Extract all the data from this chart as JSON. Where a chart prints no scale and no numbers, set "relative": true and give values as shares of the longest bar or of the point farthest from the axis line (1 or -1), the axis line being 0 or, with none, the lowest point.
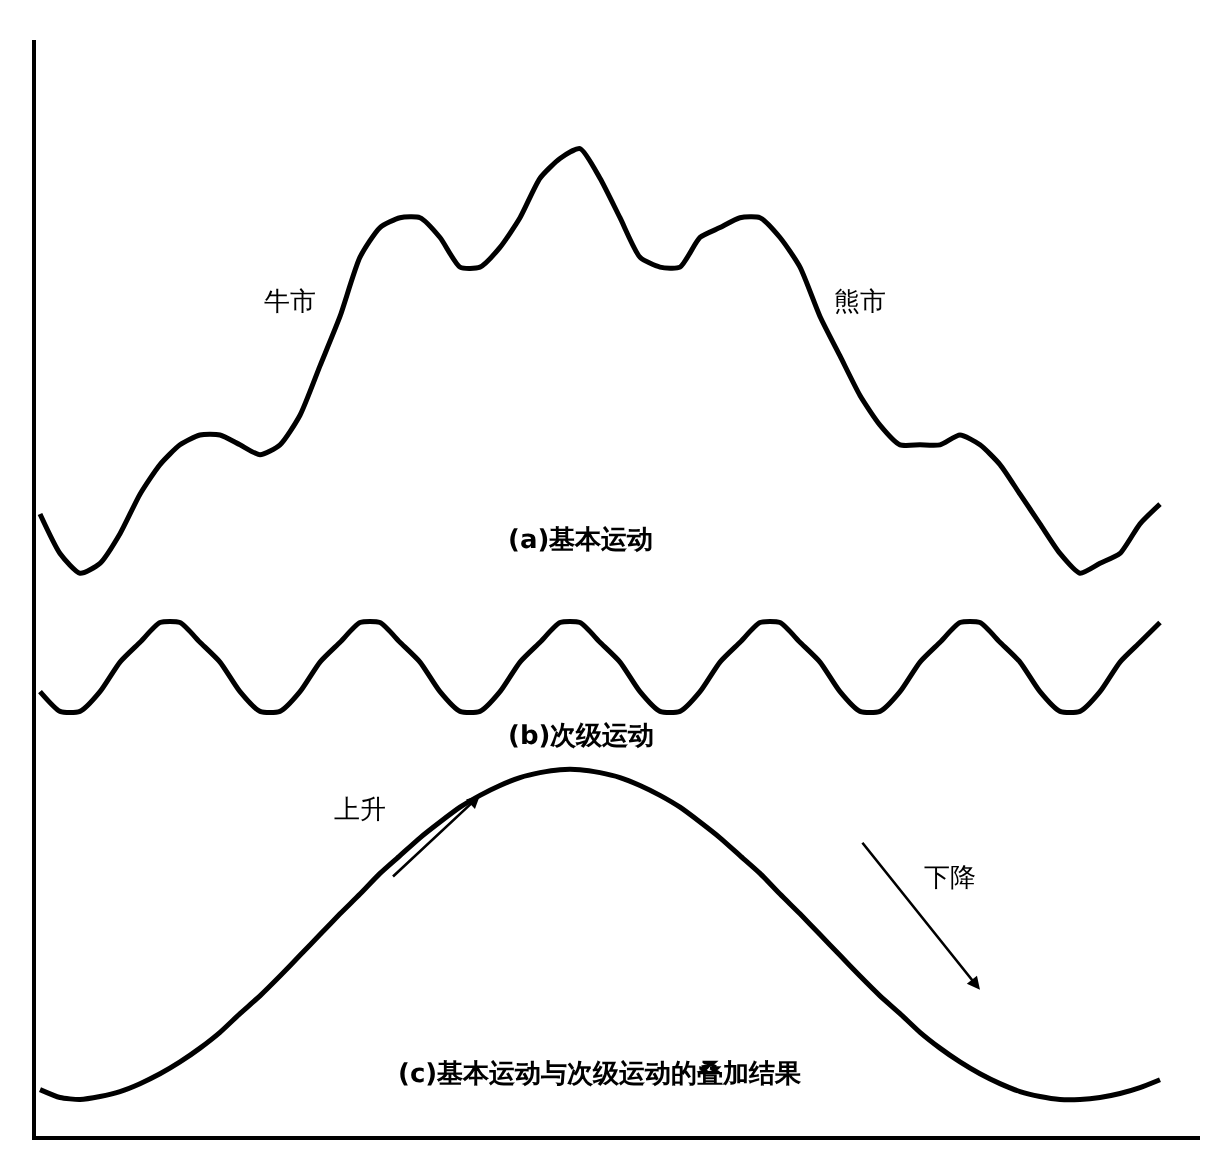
{
  "chart_data": {
    "type": "line",
    "relative": true,
    "categories": [
      null,
      null,
      null,
      null,
      null,
      null,
      null,
      null,
      null,
      null,
      null,
      null,
      null,
      null,
      null,
      null,
      null,
      null,
      null,
      null,
      null,
      null,
      null,
      null,
      null,
      null,
      null,
      null,
      null,
      null,
      null,
      null,
      null,
      null,
      null,
      null,
      null,
      null,
      null,
      null,
      null,
      null,
      null,
      null,
      null,
      null,
      null,
      null,
      null,
      null,
      null,
      null,
      null,
      null,
      null,
      null,
      null
    ],
    "series": [
      {
        "color": "#000000",
        "values": [
          0.63,
          0.59,
          0.57,
          0.58,
          0.61,
          0.65,
          0.68,
          0.7,
          0.71,
          0.71,
          0.7,
          0.69,
          0.7,
          0.73,
          0.78,
          0.83,
          0.89,
          0.92,
          0.93,
          0.93,
          0.91,
          0.88,
          0.88,
          0.9,
          0.93,
          0.97,
          0.99,
          1,
          0.97,
          0.93,
          0.89,
          0.88,
          0.88,
          0.91,
          0.92,
          0.93,
          0.93,
          0.91,
          0.88,
          0.83,
          0.79,
          0.75,
          0.72,
          0.7,
          0.7,
          0.7,
          0.71,
          0.7,
          0.68,
          0.65,
          0.62,
          0.59,
          0.57,
          0.58,
          0.59,
          0.62,
          0.64
        ]
      },
      {
        "color": "#000000",
        "values": [
          0.45,
          0.43,
          0.43,
          0.45,
          0.48,
          0.5,
          0.52,
          0.52,
          0.5,
          0.48,
          0.45,
          0.43,
          0.43,
          0.45,
          0.48,
          0.5,
          0.52,
          0.52,
          0.5,
          0.48,
          0.45,
          0.43,
          0.43,
          0.45,
          0.48,
          0.5,
          0.52,
          0.52,
          0.5,
          0.48,
          0.45,
          0.43,
          0.43,
          0.45,
          0.48,
          0.5,
          0.52,
          0.52,
          0.5,
          0.48,
          0.45,
          0.43,
          0.43,
          0.45,
          0.48,
          0.5,
          0.52,
          0.52,
          0.5,
          0.48,
          0.45,
          0.43,
          0.43,
          0.45,
          0.48,
          0.5,
          0.52
        ]
      },
      {
        "color": "#000000",
        "values": [
          0.047,
          0.039,
          0.037,
          0.04,
          0.045,
          0.053,
          0.063,
          0.075,
          0.089,
          0.105,
          0.124,
          0.142,
          0.162,
          0.183,
          0.204,
          0.225,
          0.245,
          0.266,
          0.284,
          0.302,
          0.318,
          0.333,
          0.345,
          0.355,
          0.363,
          0.368,
          0.371,
          0.371,
          0.368,
          0.363,
          0.355,
          0.345,
          0.333,
          0.318,
          0.302,
          0.284,
          0.266,
          0.245,
          0.225,
          0.204,
          0.183,
          0.162,
          0.142,
          0.124,
          0.105,
          0.089,
          0.075,
          0.063,
          0.053,
          0.045,
          0.04,
          0.037,
          0.037,
          0.039,
          0.043,
          0.049,
          0.057
        ]
      }
    ],
    "annotations": [
      "牛市",
      "熊市",
      "(a)基本运动",
      "(b)次级运动",
      "上升",
      "下降",
      "(c)基本运动与次级运动的叠加结果"
    ]
  }
}
